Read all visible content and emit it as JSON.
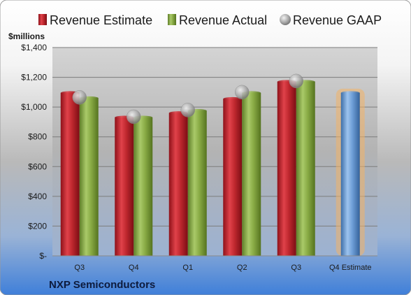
{
  "company": "NXP Semiconductors",
  "unit_label": "$millions",
  "legend": [
    {
      "label": "Revenue Estimate",
      "icon": "red-square",
      "color": "#c0282f"
    },
    {
      "label": "Revenue Actual",
      "icon": "green-square",
      "color": "#8aac46"
    },
    {
      "label": "Revenue GAAP",
      "icon": "gray-circle",
      "color": "#a8a8a8"
    }
  ],
  "chart_data": {
    "type": "bar",
    "categories": [
      "Q3",
      "Q4",
      "Q1",
      "Q2",
      "Q3",
      "Q4 Estimate"
    ],
    "series": [
      {
        "name": "Revenue Estimate",
        "values": [
          1095,
          930,
          960,
          1055,
          1170,
          null
        ]
      },
      {
        "name": "Revenue Actual",
        "values": [
          1060,
          930,
          975,
          1095,
          1170,
          null
        ]
      },
      {
        "name": "Revenue GAAP",
        "values": [
          1065,
          935,
          980,
          1100,
          1175,
          null
        ]
      },
      {
        "name": "Q4 Estimate",
        "values": [
          null,
          null,
          null,
          null,
          null,
          1095
        ]
      }
    ],
    "ylabel": "$millions",
    "ylim": [
      0,
      1400
    ],
    "yticks": [
      0,
      200,
      400,
      600,
      800,
      1000,
      1200,
      1400
    ],
    "ytick_labels": [
      "$-",
      "$200",
      "$400",
      "$600",
      "$800",
      "$1,000",
      "$1,200",
      "$1,400"
    ],
    "grid": true,
    "legend_position": "top"
  },
  "colors": {
    "estimate": "#c0282f",
    "actual": "#8aac46",
    "gaap": "#a8a8a8",
    "forecast": "#6f9fd8",
    "forecast_glow": "#f2b266"
  }
}
